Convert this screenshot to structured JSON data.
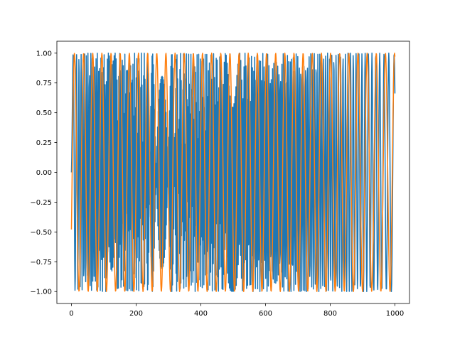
{
  "chart_data": {
    "type": "line",
    "title": "",
    "xlabel": "",
    "ylabel": "",
    "xlim": [
      -45,
      1045
    ],
    "ylim": [
      -1.1,
      1.1
    ],
    "x_ticks": [
      0,
      200,
      400,
      600,
      800,
      1000
    ],
    "x_tick_labels": [
      "0",
      "200",
      "400",
      "600",
      "800",
      "1000"
    ],
    "y_ticks": [
      -1.0,
      -0.75,
      -0.5,
      -0.25,
      0.0,
      0.25,
      0.5,
      0.75,
      1.0
    ],
    "y_tick_labels": [
      "−1.00",
      "−0.75",
      "−0.50",
      "−0.25",
      "0.00",
      "0.25",
      "0.50",
      "0.75",
      "1.00"
    ],
    "grid": false,
    "legend": "none",
    "series": [
      {
        "color": "#1f77b4",
        "function": "sin(x^1.5 / 8)",
        "x_range": [
          0,
          1000
        ],
        "samples": 1000,
        "y_range_observed": [
          -1.0,
          1.0
        ]
      },
      {
        "color": "#ff7f0e",
        "function": "sin(x / 4.5 - 0.5)",
        "x_range": [
          0,
          1000
        ],
        "samples": 1000,
        "y_range_observed": [
          -1.0,
          1.0
        ]
      }
    ]
  }
}
